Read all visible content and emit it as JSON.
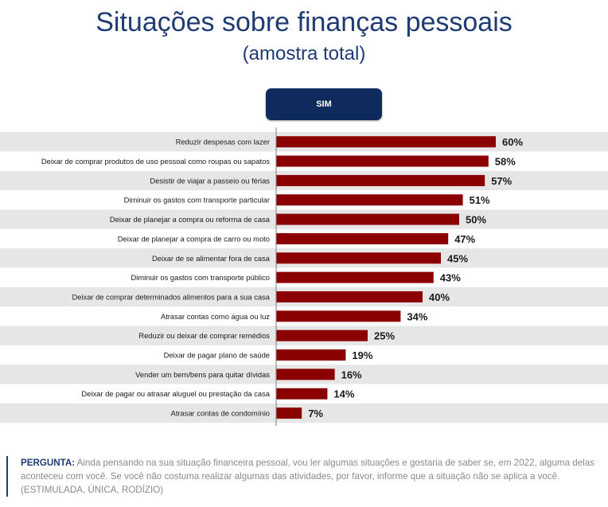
{
  "header": {
    "title": "Situações sobre finanças pessoais",
    "subtitle": "(amostra total)",
    "column_label": "SIM"
  },
  "chart_data": {
    "type": "bar",
    "orientation": "horizontal",
    "categories": [
      "Reduzir despesas com lazer",
      "Deixar de comprar produtos de uso pessoal como roupas ou sapatos",
      "Desistir de viajar a passeio ou férias",
      "Diminuir os gastos com transporte particular",
      "Deixar de planejar a compra ou reforma de casa",
      "Deixar de planejar a compra de carro ou moto",
      "Deixar de se alimentar fora de casa",
      "Diminuir os gastos com transporte público",
      "Deixar de comprar determinados alimentos para a sua casa",
      "Atrasar contas como água ou luz",
      "Reduzir ou deixar de comprar remédios",
      "Deixar de pagar plano de saúde",
      "Vender um bem/bens para quitar dívidas",
      "Deixar de pagar ou atrasar aluguel ou prestação da casa",
      "Atrasar contas de condomínio"
    ],
    "series": [
      {
        "name": "SIM",
        "values": [
          60,
          58,
          57,
          51,
          50,
          47,
          45,
          43,
          40,
          34,
          25,
          19,
          16,
          14,
          7
        ]
      }
    ],
    "value_labels": [
      "60%",
      "58%",
      "57%",
      "51%",
      "50%",
      "47%",
      "45%",
      "43%",
      "40%",
      "34%",
      "25%",
      "19%",
      "16%",
      "14%",
      "7%"
    ],
    "xlim": [
      0,
      100
    ],
    "colors": {
      "bar": "#8b0000",
      "row_stripe": "#e6e6e6",
      "divider": "#7f7f7f"
    }
  },
  "footer": {
    "question_label": "PERGUNTA:",
    "question_text": "Ainda pensando na sua situação financeira pessoal, vou ler algumas situações e gostaria de saber se, em 2022, alguma delas aconteceu com você. Se você não costuma realizar algumas das atividades, por favor, informe que a situação não se aplica a você. (ESTIMULADA, ÚNICA, RODÍZIO)"
  }
}
